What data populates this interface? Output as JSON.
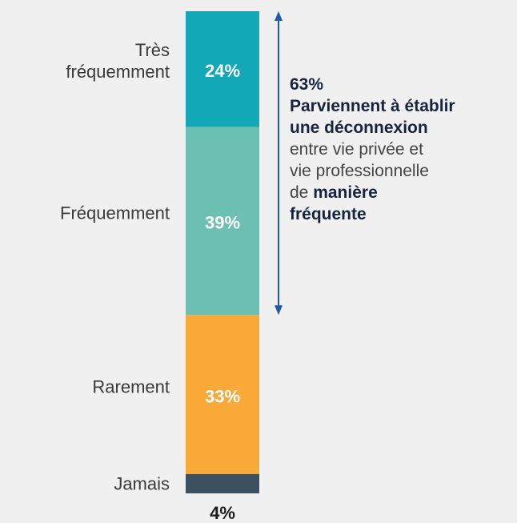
{
  "chart_data": {
    "type": "stacked-column",
    "categories": [
      "Très fréquemment",
      "Fréquemment",
      "Rarement",
      "Jamais"
    ],
    "values": [
      24,
      39,
      33,
      4
    ],
    "value_labels": [
      "24%",
      "39%",
      "33%",
      "4%"
    ],
    "colors": [
      "#12a8b8",
      "#6cc0b2",
      "#f9a937",
      "#3d5060"
    ],
    "annotation": {
      "value": 63,
      "label": "63%",
      "bold_text": [
        "Parviennent à établir",
        "une déconnexion"
      ],
      "text": [
        "entre vie privée et",
        "vie professionnelle",
        "de"
      ],
      "bold_end": [
        "manière",
        "fréquente"
      ],
      "color": "#1f5aa6"
    }
  }
}
